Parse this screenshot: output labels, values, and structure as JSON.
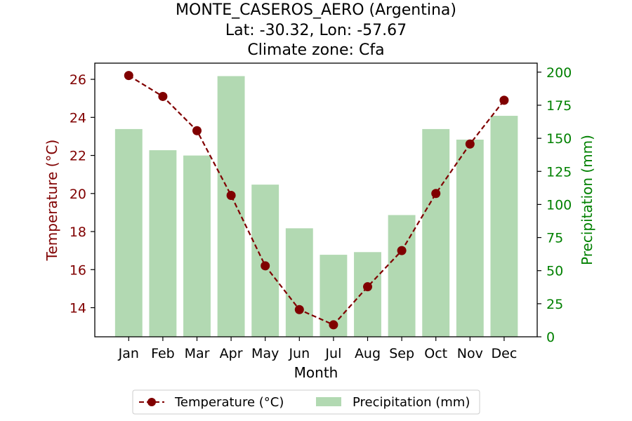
{
  "chart_data": {
    "type": "bar+line",
    "title_lines": [
      "MONTE_CASEROS_AERO (Argentina)",
      "Lat: -30.32, Lon: -57.67",
      "Climate zone: Cfa"
    ],
    "xlabel": "Month",
    "ylabel_left": "Temperature (°C)",
    "ylabel_right": "Precipitation (mm)",
    "categories": [
      "Jan",
      "Feb",
      "Mar",
      "Apr",
      "May",
      "Jun",
      "Jul",
      "Aug",
      "Sep",
      "Oct",
      "Nov",
      "Dec"
    ],
    "temperature": {
      "name": "Temperature (°C)",
      "values": [
        26.2,
        25.1,
        23.3,
        19.9,
        16.2,
        13.9,
        13.1,
        15.1,
        17.0,
        20.0,
        22.6,
        24.9
      ],
      "ylim": [
        12.47,
        26.85
      ],
      "ticks": [
        14,
        16,
        18,
        20,
        22,
        24,
        26
      ],
      "color": "#800000",
      "style": "dashed line with circle markers"
    },
    "precipitation": {
      "name": "Precipitation (mm)",
      "values": [
        157,
        141,
        137,
        197,
        115,
        82,
        62,
        64,
        92,
        157,
        149,
        167
      ],
      "ylim": [
        0,
        206.8
      ],
      "ticks": [
        0,
        25,
        50,
        75,
        100,
        125,
        150,
        175,
        200
      ],
      "color": "#b2d9b2",
      "axis_color": "#008000"
    },
    "legend_position": "bottom-center",
    "grid": false
  }
}
